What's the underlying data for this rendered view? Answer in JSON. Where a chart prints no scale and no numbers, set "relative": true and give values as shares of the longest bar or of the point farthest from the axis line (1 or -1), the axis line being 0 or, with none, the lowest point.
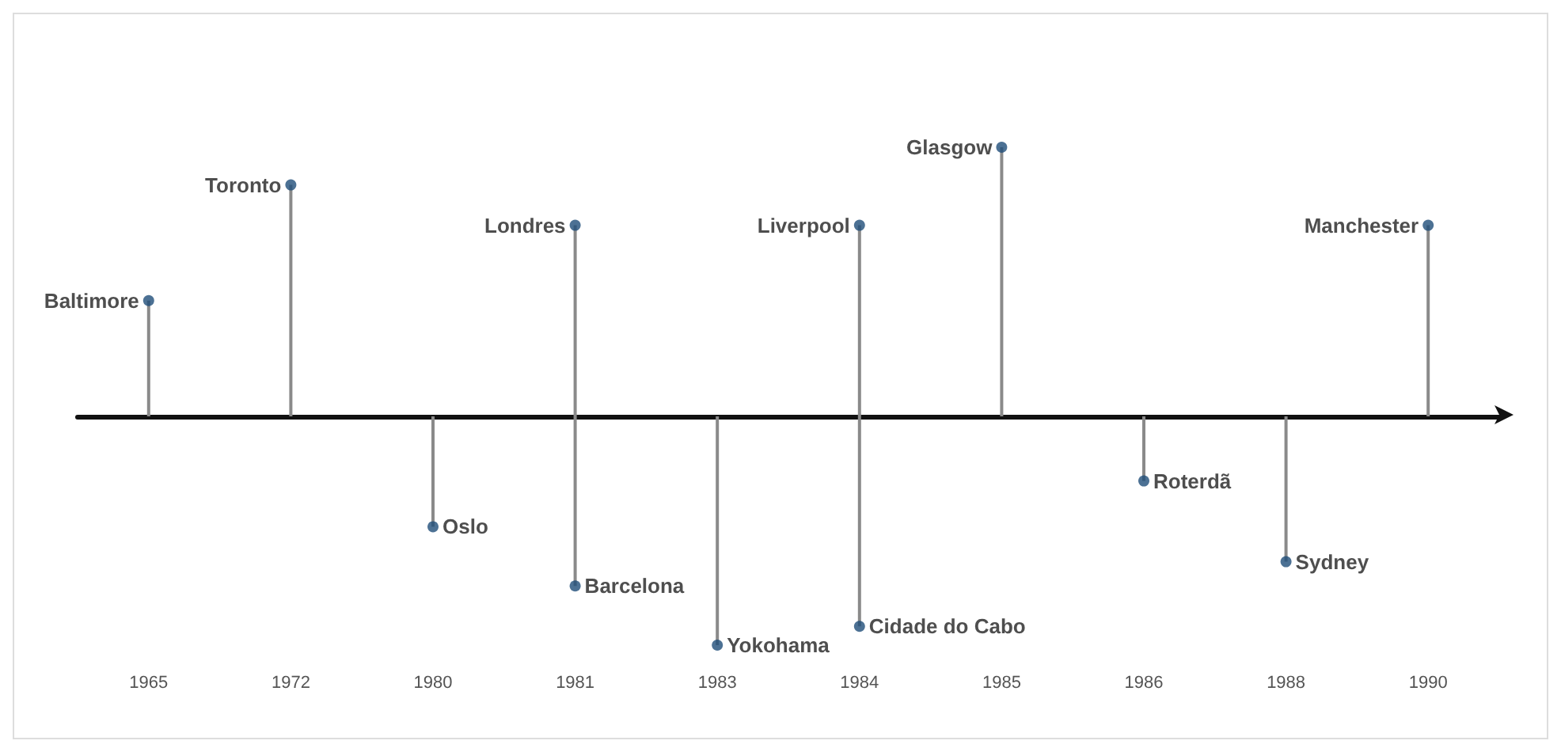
{
  "chart_data": {
    "type": "lollipop",
    "relative": true,
    "categories": [
      "1965",
      "1972",
      "1980",
      "1981",
      "1983",
      "1984",
      "1985",
      "1986",
      "1988",
      "1990"
    ],
    "series": [
      {
        "color": "#1f4e79",
        "values": [
          0.43,
          0.86,
          null,
          0.71,
          null,
          0.71,
          1,
          null,
          null,
          0.71
        ]
      },
      {
        "color": "#1f4e79",
        "values": [
          null,
          null,
          -0.41,
          -0.63,
          -0.85,
          -0.78,
          null,
          -0.24,
          -0.54,
          null
        ]
      }
    ],
    "annotations": [
      {
        "text": "Baltimore",
        "x": "1965",
        "y": 0.43
      },
      {
        "text": "Toronto",
        "x": "1972",
        "y": 0.86
      },
      {
        "text": "Londres",
        "x": "1981",
        "y": 0.71
      },
      {
        "text": "Liverpool",
        "x": "1984",
        "y": 0.71
      },
      {
        "text": "Glasgow",
        "x": "1985",
        "y": 1
      },
      {
        "text": "Manchester",
        "x": "1990",
        "y": 0.71
      },
      {
        "text": "Oslo",
        "x": "1980",
        "y": -0.41
      },
      {
        "text": "Barcelona",
        "x": "1981",
        "y": -0.63
      },
      {
        "text": "Yokohama",
        "x": "1983",
        "y": -0.85
      },
      {
        "text": "Cidade do Cabo",
        "x": "1984",
        "y": -0.78
      },
      {
        "text": "Roterdã",
        "x": "1986",
        "y": -0.24
      },
      {
        "text": "Sydney",
        "x": "1988",
        "y": -0.54
      }
    ]
  }
}
